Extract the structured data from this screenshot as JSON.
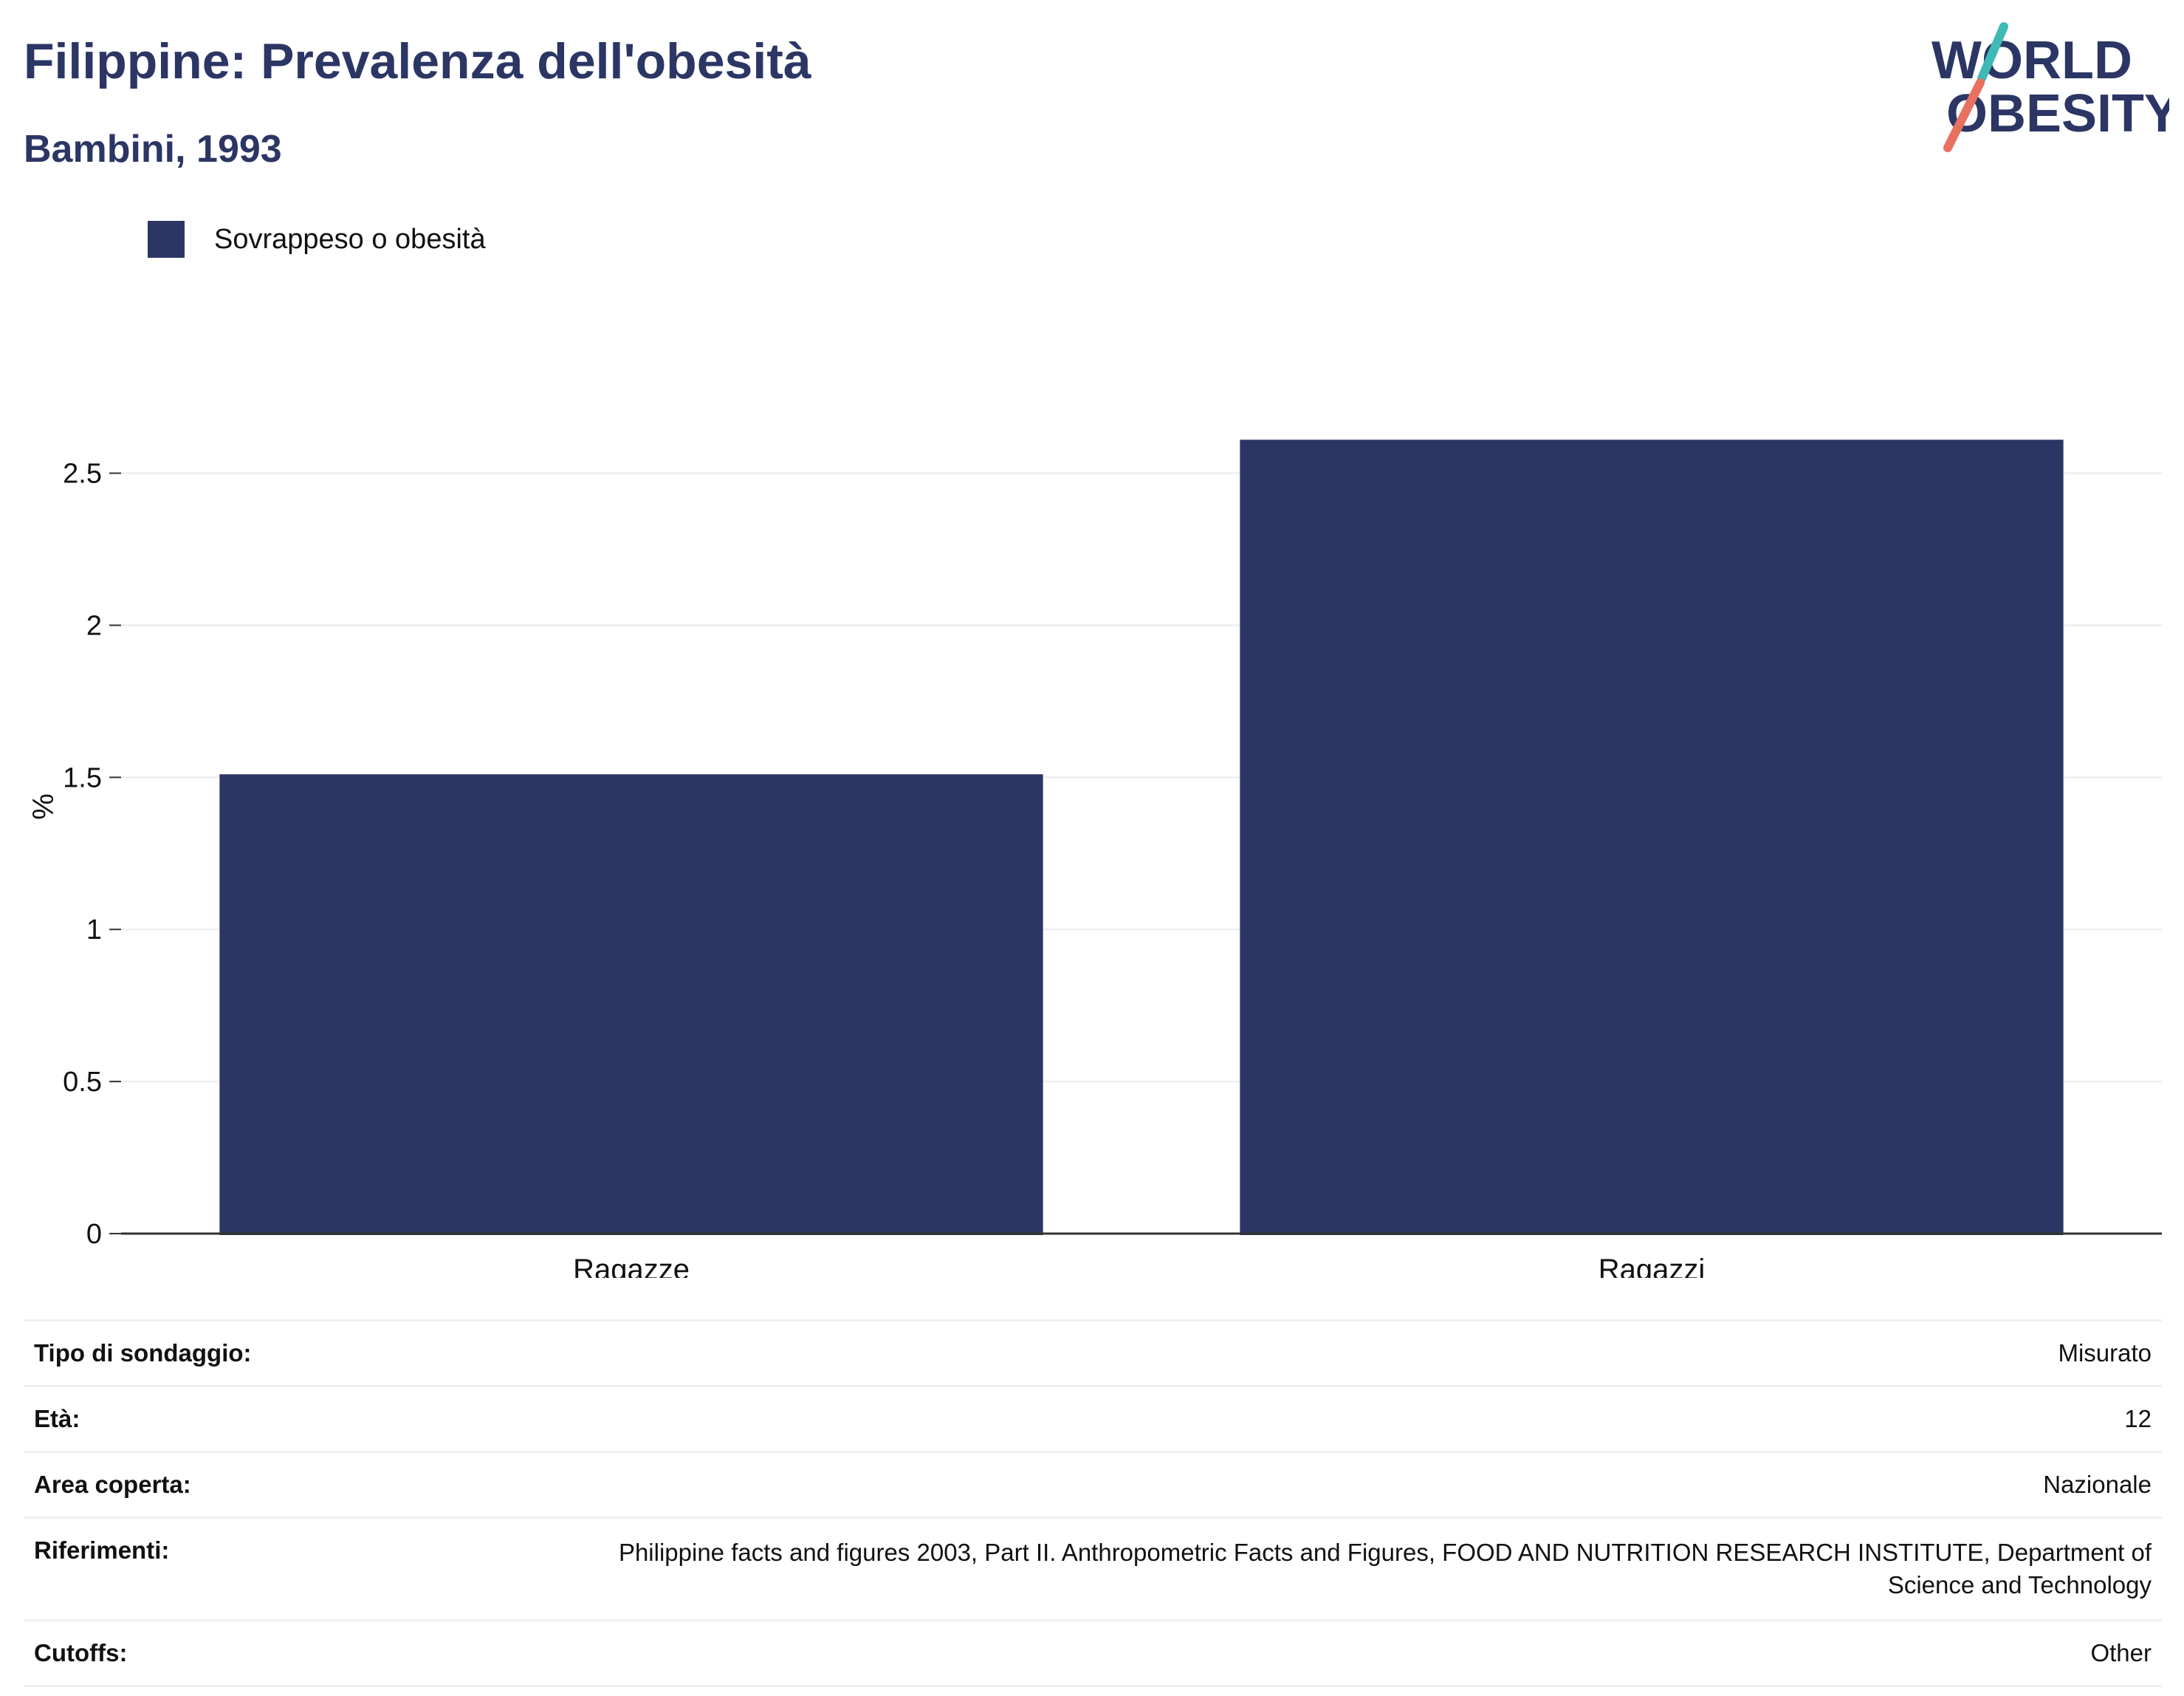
{
  "header": {
    "title": "Filippine: Prevalenza dell'obesità",
    "subtitle": "Bambini, 1993"
  },
  "logo": {
    "line1": "WORLD",
    "line2": "OBESITY",
    "colors": {
      "text": "#2b3664",
      "accent_teal": "#3fb9b5",
      "accent_coral": "#e8705f"
    }
  },
  "legend": {
    "items": [
      {
        "label": "Sovrappeso o obesità",
        "color": "#2b3664"
      }
    ]
  },
  "chart_data": {
    "type": "bar",
    "title": "Filippine: Prevalenza dell'obesità",
    "subtitle": "Bambini, 1993",
    "categories": [
      "Ragazze",
      "Ragazzi"
    ],
    "series": [
      {
        "name": "Sovrappeso o obesità",
        "values": [
          1.51,
          2.61
        ],
        "color": "#2b3664"
      }
    ],
    "xlabel": "",
    "ylabel": "%",
    "ylim": [
      0,
      2.72
    ],
    "yticks": [
      0,
      0.5,
      1,
      1.5,
      2,
      2.5
    ],
    "ytick_labels": [
      "0",
      "0.5",
      "1",
      "1.5",
      "2",
      "2.5"
    ],
    "grid": true,
    "legend_position": "top-left"
  },
  "info_table": {
    "rows": [
      {
        "label": "Tipo di sondaggio:",
        "value": "Misurato"
      },
      {
        "label": "Età:",
        "value": "12"
      },
      {
        "label": "Area coperta:",
        "value": "Nazionale"
      },
      {
        "label": "Riferimenti:",
        "value": "Philippine facts and figures 2003, Part II. Anthropometric Facts and Figures, FOOD AND NUTRITION RESEARCH INSTITUTE, Department of Science and Technology"
      },
      {
        "label": "Cutoffs:",
        "value": "Other"
      }
    ]
  },
  "colors": {
    "gridline": "#eef0f4",
    "axis": "#333333",
    "brand": "#2b3664"
  }
}
